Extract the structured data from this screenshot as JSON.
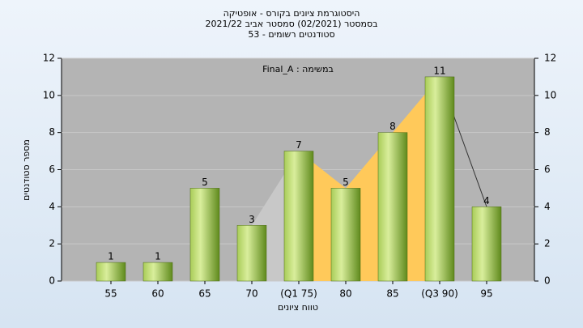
{
  "chart_data": {
    "type": "bar",
    "title": "היסטוגרמת ציונים בקורס - אופטיקה",
    "subtitle": "בסמסטר  (02/2021)  סמסטר אביב 2021/22",
    "subtitle2": "סטודנטים רשומים - 53",
    "annotation": "Final_A : במשימה",
    "y_label": "מספר סטודנטים",
    "x_label": "טווח ציונים",
    "categories": [
      "55",
      "60",
      "65",
      "70",
      "(Q1 75)",
      "80",
      "85",
      "(Q3 90)",
      "95"
    ],
    "values": [
      1,
      1,
      5,
      3,
      7,
      5,
      8,
      11,
      4
    ],
    "color": "#8fb83a",
    "ylim": [
      0,
      12
    ],
    "yticks": [
      0,
      2,
      4,
      6,
      8,
      10,
      12
    ],
    "y2lim": [
      0,
      12
    ],
    "y2ticks": [
      0,
      2,
      4,
      6,
      8,
      10,
      12
    ],
    "grid": true
  }
}
